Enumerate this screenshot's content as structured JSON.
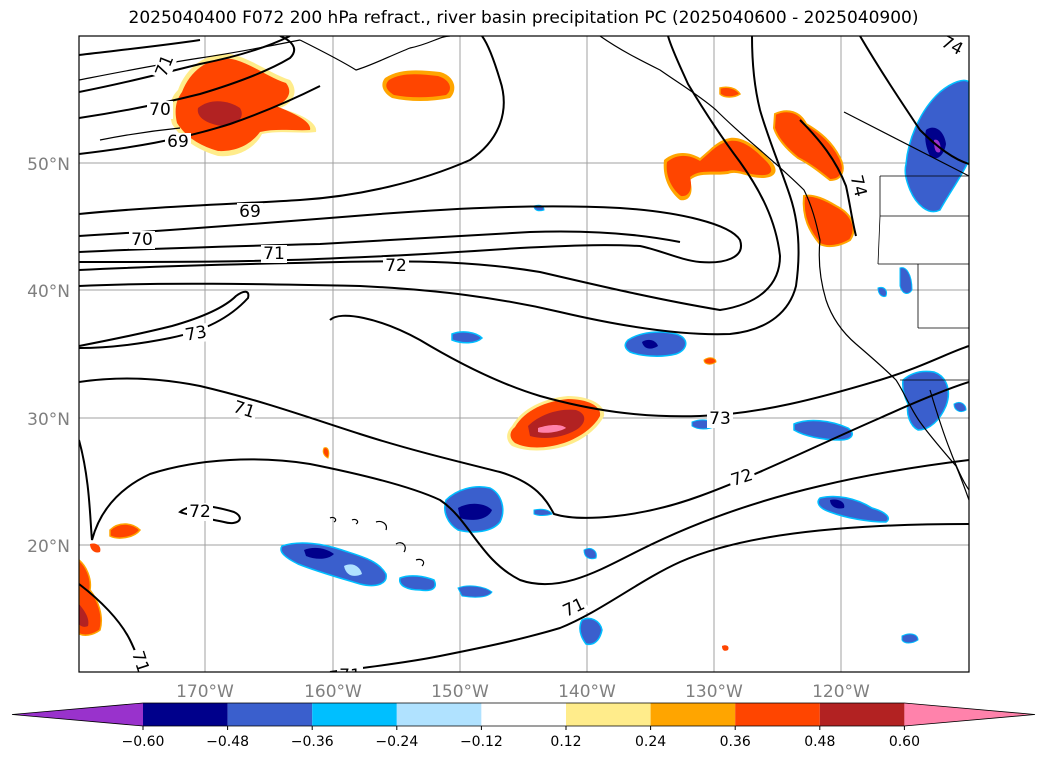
{
  "title": "2025040400 F072 200 hPa refract., river basin precipitation PC (2025040600 - 2025040900)",
  "map": {
    "lat_labels": [
      "50°N",
      "40°N",
      "30°N",
      "20°N"
    ],
    "lon_labels": [
      "170°W",
      "160°W",
      "150°W",
      "140°W",
      "130°W",
      "120°W"
    ],
    "contour_labels": [
      "71",
      "70",
      "69",
      "69",
      "70",
      "71",
      "72",
      "73",
      "71",
      "72",
      "73",
      "72",
      "71",
      "71",
      "71",
      "74",
      "74"
    ]
  },
  "colorbar": {
    "ticks": [
      "−0.60",
      "−0.48",
      "−0.36",
      "−0.24",
      "−0.12",
      "0.12",
      "0.24",
      "0.36",
      "0.48",
      "0.60"
    ],
    "colors": [
      "#9932cc",
      "#00008b",
      "#3a5fcd",
      "#00bfff",
      "#b0e2ff",
      "#ffffff",
      "#ffec8b",
      "#ffa500",
      "#ff4500",
      "#b22222",
      "#ff82ab"
    ]
  },
  "colors": {
    "coast": "#000000",
    "contour": "#000000",
    "grid": "#a0a0a0"
  }
}
